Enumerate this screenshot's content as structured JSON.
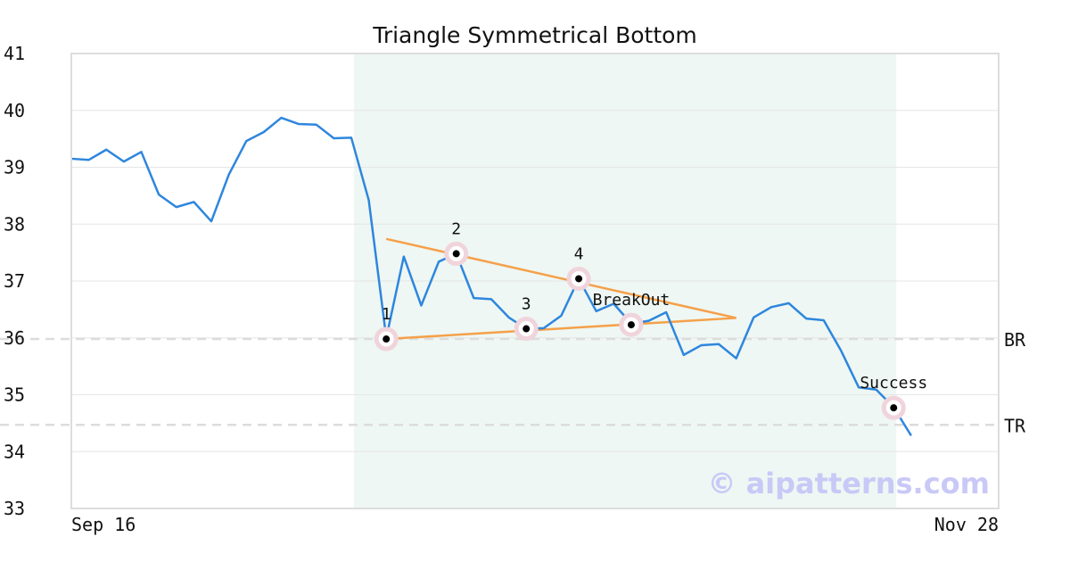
{
  "chart_data": {
    "type": "line",
    "title": "Triangle Symmetrical Bottom",
    "ylim": [
      33,
      41
    ],
    "yticks": [
      "33",
      "34",
      "35",
      "36",
      "37",
      "38",
      "39",
      "40",
      "41"
    ],
    "x_labels": [
      "Sep 16",
      "Nov 28"
    ],
    "x_count": 54,
    "grid": true,
    "series": [
      {
        "color": "#2e86de",
        "values": [
          39.15,
          39.13,
          39.31,
          39.1,
          39.27,
          38.52,
          38.3,
          38.39,
          38.05,
          38.87,
          39.46,
          39.62,
          39.87,
          39.76,
          39.75,
          39.51,
          39.52,
          38.42,
          36.0,
          37.43,
          36.57,
          37.34,
          37.48,
          36.7,
          36.68,
          36.36,
          36.16,
          36.17,
          36.39,
          37.04,
          36.47,
          36.6,
          36.25,
          36.3,
          36.45,
          35.7,
          35.87,
          35.89,
          35.64,
          36.36,
          36.54,
          36.61,
          36.34,
          36.31,
          35.77,
          35.13,
          35.09,
          34.78,
          34.28
        ]
      }
    ],
    "highlight_range": {
      "from": 16,
      "to": 47,
      "color": "#eef7f3"
    },
    "triangle_lines": [
      {
        "color": "#f5a04a",
        "points": [
          [
            18,
            37.74
          ],
          [
            38,
            36.35
          ]
        ]
      },
      {
        "color": "#f5a04a",
        "points": [
          [
            18,
            35.98
          ],
          [
            38,
            36.35
          ]
        ]
      }
    ],
    "reference_lines": [
      {
        "label": "BR",
        "value": 35.98
      },
      {
        "label": "TR",
        "value": 34.47
      }
    ],
    "points": [
      {
        "label": "1",
        "x": 18,
        "y": 35.98
      },
      {
        "label": "2",
        "x": 22,
        "y": 37.48
      },
      {
        "label": "3",
        "x": 26,
        "y": 36.16
      },
      {
        "label": "4",
        "x": 29,
        "y": 37.04
      },
      {
        "label": "BreakOut",
        "x": 32,
        "y": 36.23
      },
      {
        "label": "Success",
        "x": 47,
        "y": 34.77
      }
    ],
    "watermark": "© aipatterns.com"
  }
}
